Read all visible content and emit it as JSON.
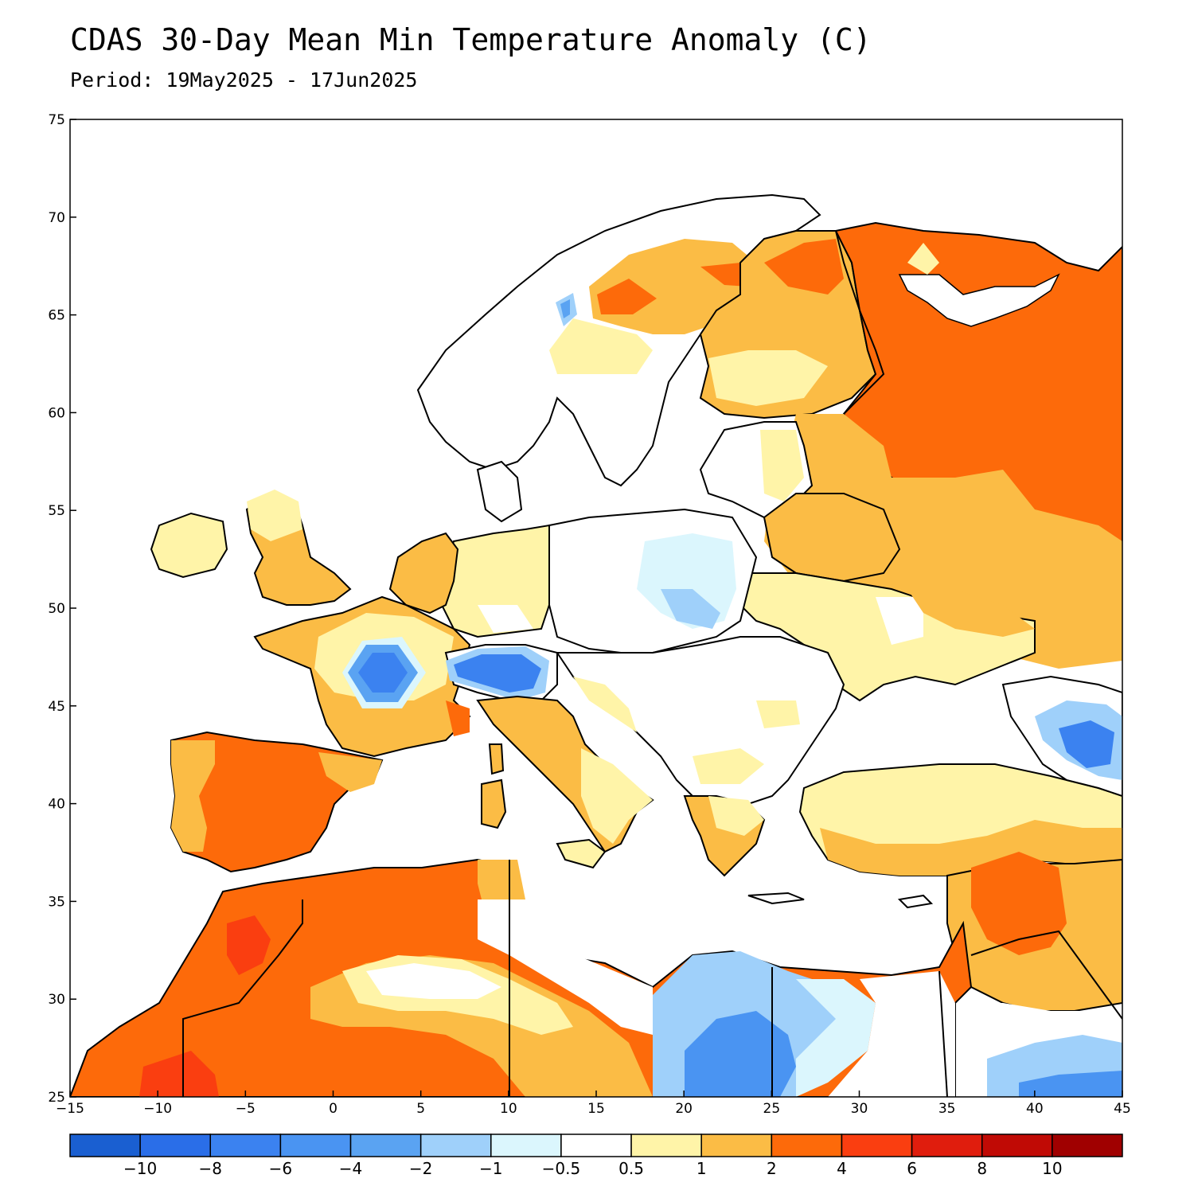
{
  "title": "CDAS 30-Day Mean Min Temperature Anomaly (C)",
  "subtitle": "Period: 19May2025 - 17Jun2025",
  "map": {
    "lon_range": [
      -15,
      45
    ],
    "lat_range": [
      25,
      75
    ],
    "x_ticks": [
      "−15",
      "−10",
      "−5",
      "0",
      "5",
      "10",
      "15",
      "20",
      "25",
      "30",
      "35",
      "40",
      "45"
    ],
    "y_ticks": [
      "75",
      "70",
      "65",
      "60",
      "55",
      "50",
      "45",
      "40",
      "35",
      "30",
      "25"
    ]
  },
  "legend": {
    "colors": [
      "#1a5fd1",
      "#2a6ee8",
      "#3b82f0",
      "#4a94f2",
      "#5aa3f2",
      "#9fd0fa",
      "#dbf6fd",
      "#ffffff",
      "#fff4a8",
      "#fbbc45",
      "#fd6a0a",
      "#fa3e10",
      "#e01d0d",
      "#c00a05",
      "#a00000"
    ],
    "labels": [
      "−10",
      "−8",
      "−6",
      "−4",
      "−2",
      "−1",
      "−0.5",
      "0.5",
      "1",
      "2",
      "4",
      "6",
      "8",
      "10"
    ]
  }
}
